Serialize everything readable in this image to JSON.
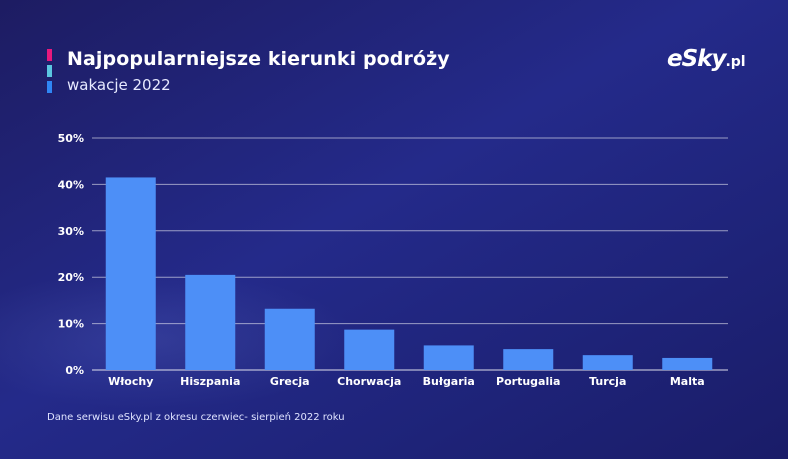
{
  "header": {
    "title": "Najpopularniejsze kierunki podróży",
    "subtitle": "wakacje 2022",
    "accent_colors": [
      "#e8197d",
      "#5bc6e0",
      "#2f86f5"
    ]
  },
  "logo": {
    "main": "eSky",
    "tld": ".pl"
  },
  "footnote": "Dane serwisu eSky.pl z okresu czerwiec- sierpień 2022 roku",
  "colors": {
    "bar": "#4d8ff7",
    "gridline": "#ffffff",
    "background": "#22287e"
  },
  "chart_data": {
    "type": "bar",
    "categories": [
      "Włochy",
      "Hiszpania",
      "Grecja",
      "Chorwacja",
      "Bułgaria",
      "Portugalia",
      "Turcja",
      "Malta"
    ],
    "values": [
      41.5,
      20.5,
      13.2,
      8.7,
      5.3,
      4.5,
      3.2,
      2.6
    ],
    "ylim": [
      0,
      50
    ],
    "yticks": [
      0,
      10,
      20,
      30,
      40,
      50
    ],
    "ytick_labels": [
      "0%",
      "10%",
      "20%",
      "30%",
      "40%",
      "50%"
    ],
    "grid": true,
    "title": "",
    "xlabel": "",
    "ylabel": ""
  }
}
